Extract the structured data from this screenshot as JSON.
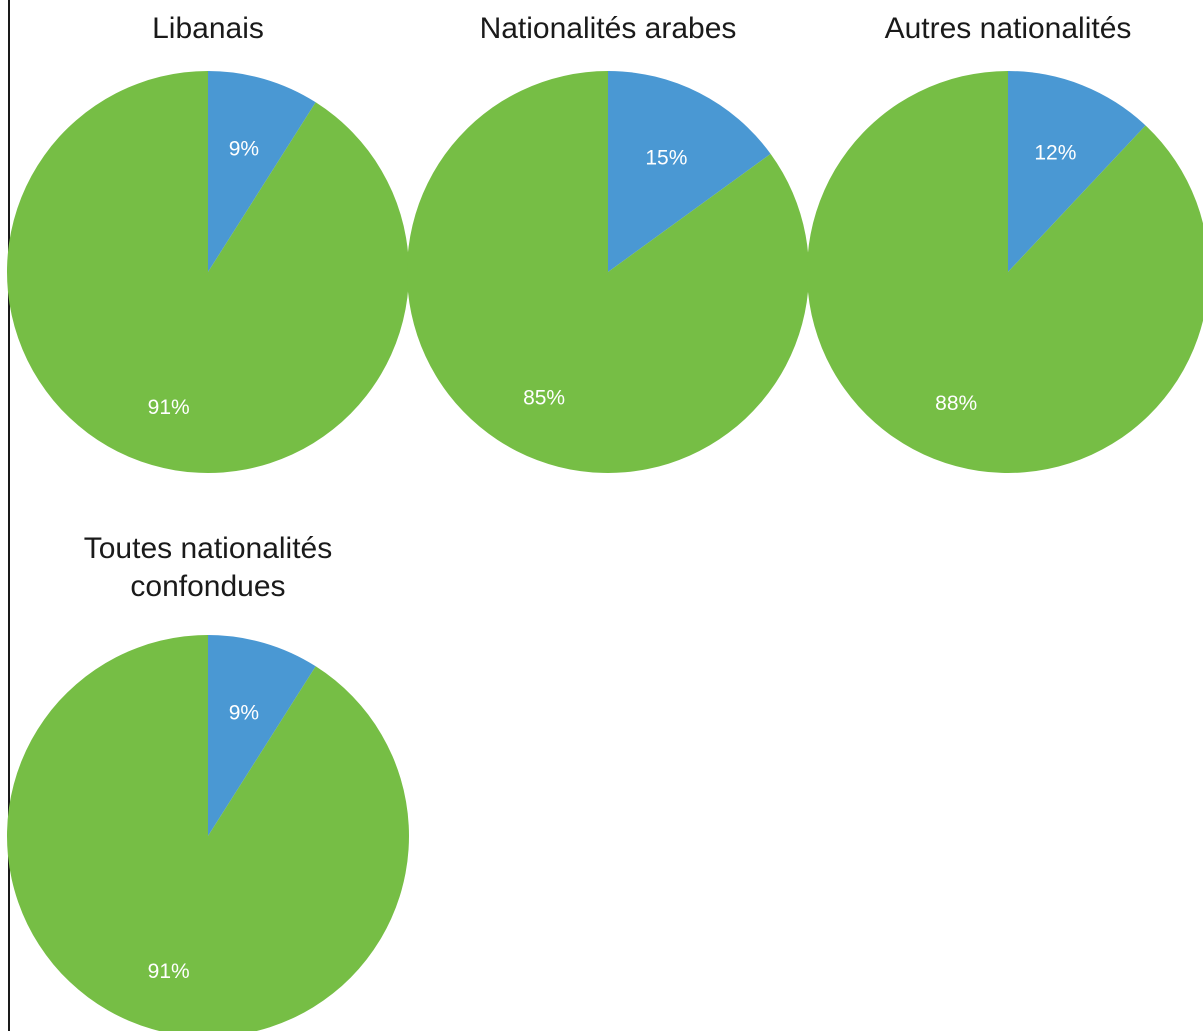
{
  "chart_data": [
    {
      "type": "pie",
      "title": "Libanais",
      "slices": [
        {
          "label": "9%",
          "value": 9,
          "color": "#4A98D3"
        },
        {
          "label": "91%",
          "value": 91,
          "color": "#76BE45"
        }
      ]
    },
    {
      "type": "pie",
      "title": "Nationalités arabes",
      "slices": [
        {
          "label": "15%",
          "value": 15,
          "color": "#4A98D3"
        },
        {
          "label": "85%",
          "value": 85,
          "color": "#76BE45"
        }
      ]
    },
    {
      "type": "pie",
      "title": "Autres nationalités",
      "slices": [
        {
          "label": "12%",
          "value": 12,
          "color": "#4A98D3"
        },
        {
          "label": "88%",
          "value": 88,
          "color": "#76BE45"
        }
      ]
    },
    {
      "type": "pie",
      "title": "Toutes nationalités\nconfondues",
      "slices": [
        {
          "label": "9%",
          "value": 9,
          "color": "#4A98D3"
        },
        {
          "label": "91%",
          "value": 91,
          "color": "#76BE45"
        }
      ]
    }
  ]
}
